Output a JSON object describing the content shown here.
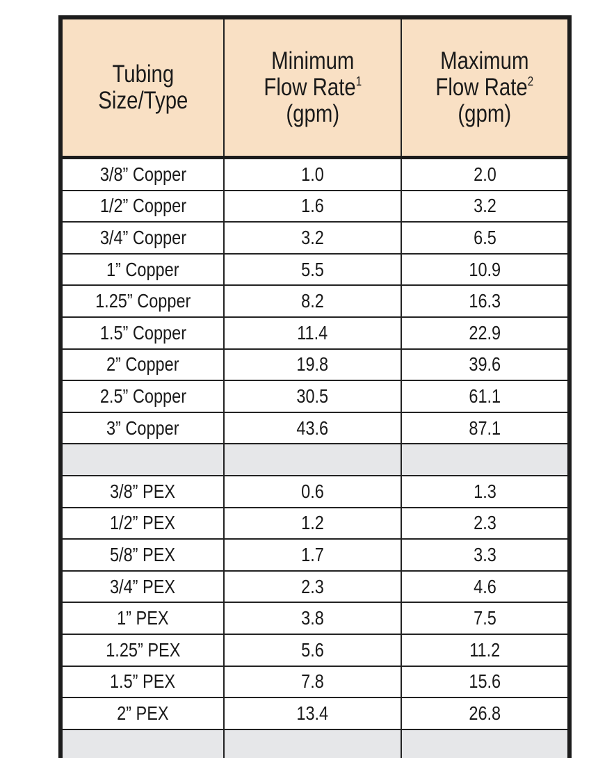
{
  "table": {
    "header": [
      {
        "lines": [
          "Tubing",
          "Size/Type"
        ]
      },
      {
        "lines": [
          "Minimum",
          "Flow Rate",
          "(gpm)"
        ],
        "sup": "1"
      },
      {
        "lines": [
          "Maximum",
          "Flow Rate",
          "(gpm)"
        ],
        "sup": "2"
      }
    ],
    "groups": [
      [
        [
          "3/8” Copper",
          "1.0",
          "2.0"
        ],
        [
          "1/2” Copper",
          "1.6",
          "3.2"
        ],
        [
          "3/4” Copper",
          "3.2",
          "6.5"
        ],
        [
          "1” Copper",
          "5.5",
          "10.9"
        ],
        [
          "1.25” Copper",
          "8.2",
          "16.3"
        ],
        [
          "1.5” Copper",
          "11.4",
          "22.9"
        ],
        [
          "2” Copper",
          "19.8",
          "39.6"
        ],
        [
          "2.5” Copper",
          "30.5",
          "61.1"
        ],
        [
          "3” Copper",
          "43.6",
          "87.1"
        ]
      ],
      [
        [
          "3/8” PEX",
          "0.6",
          "1.3"
        ],
        [
          "1/2” PEX",
          "1.2",
          "2.3"
        ],
        [
          "5/8” PEX",
          "1.7",
          "3.3"
        ],
        [
          "3/4” PEX",
          "2.3",
          "4.6"
        ],
        [
          "1” PEX",
          "3.8",
          "7.5"
        ],
        [
          "1.25” PEX",
          "5.6",
          "11.2"
        ],
        [
          "1.5” PEX",
          "7.8",
          "15.6"
        ],
        [
          "2” PEX",
          "13.4",
          "26.8"
        ]
      ]
    ]
  }
}
